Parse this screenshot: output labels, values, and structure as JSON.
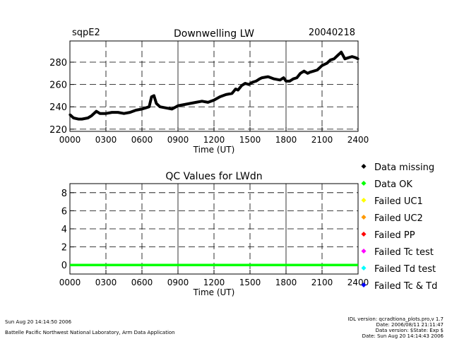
{
  "header": {
    "station": "sqpE2",
    "date": "20040218"
  },
  "legend": [
    {
      "label": "Data missing",
      "color": "#000000"
    },
    {
      "label": "Data OK",
      "color": "#00ff00"
    },
    {
      "label": "Failed UC1",
      "color": "#ffff00"
    },
    {
      "label": "Failed UC2",
      "color": "#ff9900"
    },
    {
      "label": "Failed PP",
      "color": "#ff0000"
    },
    {
      "label": "Failed Tc test",
      "color": "#ff00ff"
    },
    {
      "label": "Failed Td test",
      "color": "#00ffff"
    },
    {
      "label": "Failed Tc & Td",
      "color": "#0000ff"
    }
  ],
  "footer": {
    "run_time": "Sun Aug 20 14:14:50 2006",
    "lab": "Battelle Pacific Northwest National Laboratory, Arm Data Application",
    "idl_version": "IDL version: qcradtiona_plots.pro,v 1.7",
    "date_line": "Date: 2006/08/11 21:11:47",
    "data_version": "Data version: $State: Exp $",
    "data_date": "Date: Sun Aug 20 14:14:43 2006"
  },
  "chart_data": [
    {
      "type": "line",
      "title": "Downwelling LW",
      "xlabel": "Time (UT)",
      "ylabel": "",
      "xlim": [
        0,
        24
      ],
      "ylim": [
        218,
        299
      ],
      "xticks": [
        0,
        3,
        6,
        9,
        12,
        15,
        18,
        21,
        24
      ],
      "xtick_labels": [
        "0000",
        "0300",
        "0600",
        "0900",
        "1200",
        "1500",
        "1800",
        "2100",
        "2400"
      ],
      "yticks": [
        220,
        240,
        260,
        280
      ],
      "ytick_labels": [
        "220",
        "240",
        "260",
        "280"
      ],
      "grid": true,
      "series": [
        {
          "name": "LWdn",
          "color": "#000000",
          "x": [
            0,
            0.3,
            0.7,
            1.0,
            1.5,
            1.8,
            2.2,
            2.5,
            2.7,
            3.0,
            3.5,
            4.0,
            4.5,
            5.0,
            5.5,
            6.0,
            6.3,
            6.6,
            6.8,
            7.0,
            7.2,
            7.5,
            8.0,
            8.5,
            9.0,
            9.5,
            10.0,
            10.5,
            11.0,
            11.5,
            12.0,
            12.5,
            13.0,
            13.5,
            13.8,
            14.0,
            14.3,
            14.6,
            14.9,
            15.2,
            15.5,
            15.8,
            16.0,
            16.5,
            17.0,
            17.5,
            17.8,
            18.0,
            18.3,
            18.6,
            18.9,
            19.2,
            19.5,
            19.8,
            20.0,
            20.3,
            20.6,
            21.0,
            21.4,
            21.7,
            22.0,
            22.3,
            22.6,
            22.9,
            23.2,
            23.5,
            23.8,
            24.0
          ],
          "y": [
            233,
            230,
            229,
            229,
            230,
            232,
            236,
            234,
            234,
            234,
            235,
            235,
            234,
            235,
            237,
            238,
            239,
            240,
            249,
            250,
            243,
            240,
            239,
            238,
            241,
            242,
            243,
            244,
            245,
            244,
            246,
            249,
            251,
            252,
            256,
            255,
            259,
            261,
            260,
            262,
            263,
            265,
            266,
            267,
            265,
            264,
            266,
            263,
            263,
            265,
            266,
            270,
            272,
            270,
            271,
            272,
            273,
            277,
            279,
            282,
            283,
            286,
            289,
            283,
            284,
            285,
            284,
            283
          ]
        }
      ]
    },
    {
      "type": "line",
      "title": "QC Values for LWdn",
      "xlabel": "Time (UT)",
      "ylabel": "",
      "xlim": [
        0,
        24
      ],
      "ylim": [
        -1,
        9
      ],
      "xticks": [
        0,
        3,
        6,
        9,
        12,
        15,
        18,
        21,
        24
      ],
      "xtick_labels": [
        "0000",
        "0300",
        "0600",
        "0900",
        "1200",
        "1500",
        "1800",
        "2100",
        "2400"
      ],
      "yticks": [
        0,
        2,
        4,
        6,
        8
      ],
      "ytick_labels": [
        "0",
        "2",
        "4",
        "6",
        "8"
      ],
      "grid": true,
      "series": [
        {
          "name": "QC",
          "color": "#00ff00",
          "x": [
            0,
            24
          ],
          "y": [
            0,
            0
          ]
        }
      ]
    }
  ]
}
